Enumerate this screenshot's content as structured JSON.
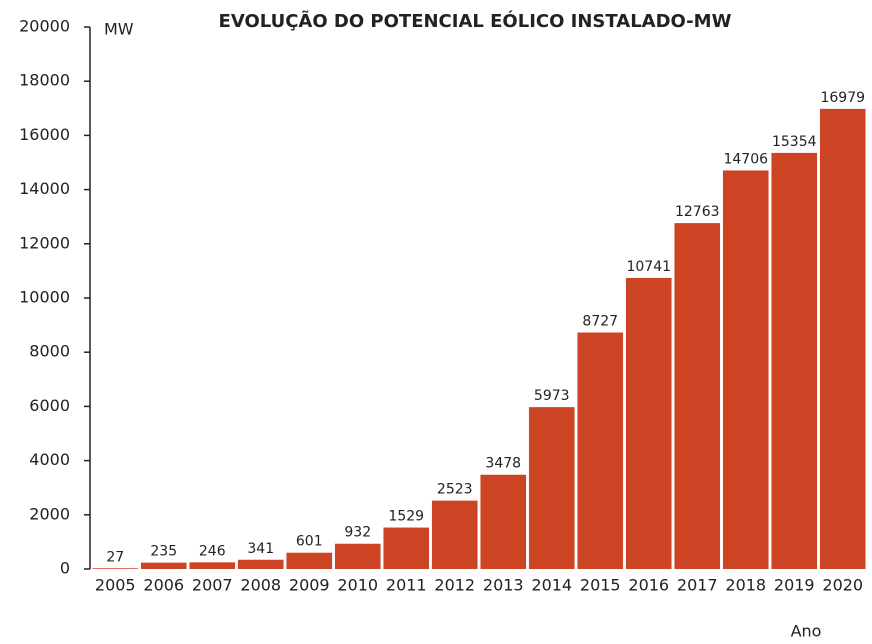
{
  "chart_data": {
    "type": "bar",
    "title": "EVOLUÇÃO DO POTENCIAL EÓLICO INSTALADO-MW",
    "y_label": "MW",
    "x_label": "Ano",
    "categories": [
      "2005",
      "2006",
      "2007",
      "2008",
      "2009",
      "2010",
      "2011",
      "2012",
      "2013",
      "2014",
      "2015",
      "2016",
      "2017",
      "2018",
      "2019",
      "2020"
    ],
    "values": [
      27,
      235,
      246,
      341,
      601,
      932,
      1529,
      2523,
      3478,
      5973,
      8727,
      10741,
      12763,
      14706,
      15354,
      16979
    ],
    "color": "#cc4423",
    "ylim": [
      0,
      20000
    ],
    "yticks": [
      0,
      2000,
      4000,
      6000,
      8000,
      10000,
      12000,
      14000,
      16000,
      18000,
      20000
    ],
    "grid": false
  }
}
